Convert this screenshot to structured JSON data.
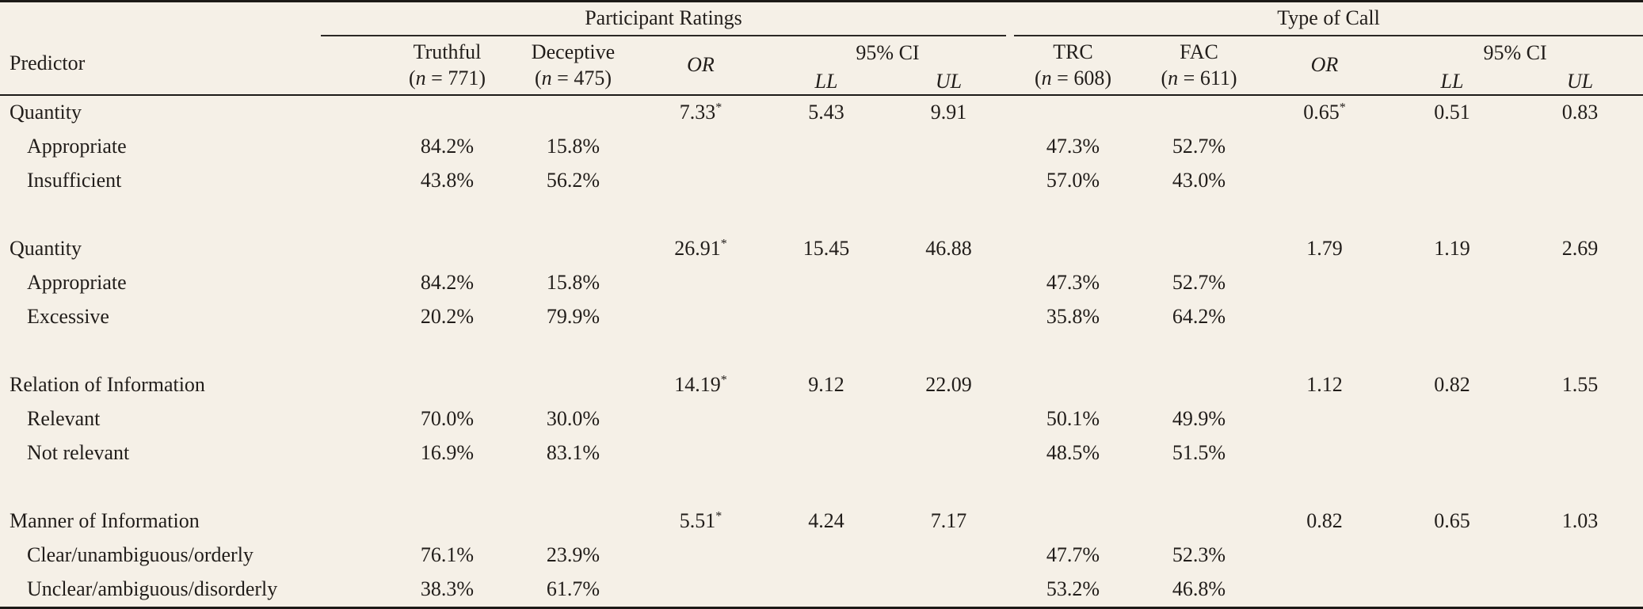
{
  "page": {
    "background_color": "#f5f0e7",
    "text_color": "#211d1a",
    "rule_color": "#1c1a17"
  },
  "table": {
    "header": {
      "predictor_label": "Predictor",
      "group1": {
        "label": "Participant Ratings",
        "col1_top": "Truthful",
        "col1_n_pre": "(",
        "col1_n_italic": "n",
        "col1_n_post": " = 771)",
        "col2_top": "Deceptive",
        "col2_n_pre": "(",
        "col2_n_italic": "n",
        "col2_n_post": " = 475)",
        "or_label": "OR",
        "ci_label": "95% CI",
        "ll_label": "LL",
        "ul_label": "UL"
      },
      "group2": {
        "label": "Type of Call",
        "col1_top": "TRC",
        "col1_n_pre": "(",
        "col1_n_italic": "n",
        "col1_n_post": " = 608)",
        "col2_top": "FAC",
        "col2_n_pre": "(",
        "col2_n_italic": "n",
        "col2_n_post": " = 611)",
        "or_label": "OR",
        "ci_label": "95% CI",
        "ll_label": "LL",
        "ul_label": "UL"
      }
    },
    "rows": [
      {
        "label": "Quantity",
        "indent": false,
        "cells": [
          "",
          "",
          "7.33*",
          "5.43",
          "9.91",
          "",
          "",
          "0.65*",
          "0.51",
          "0.83"
        ]
      },
      {
        "label": "Appropriate",
        "indent": true,
        "cells": [
          "84.2%",
          "15.8%",
          "",
          "",
          "",
          "47.3%",
          "52.7%",
          "",
          "",
          ""
        ]
      },
      {
        "label": "Insufficient",
        "indent": true,
        "cells": [
          "43.8%",
          "56.2%",
          "",
          "",
          "",
          "57.0%",
          "43.0%",
          "",
          "",
          ""
        ]
      },
      {
        "label": "",
        "spacer": true,
        "cells": [
          "",
          "",
          "",
          "",
          "",
          "",
          "",
          "",
          "",
          ""
        ]
      },
      {
        "label": "Quantity",
        "indent": false,
        "cells": [
          "",
          "",
          "26.91*",
          "15.45",
          "46.88",
          "",
          "",
          "1.79",
          "1.19",
          "2.69"
        ]
      },
      {
        "label": "Appropriate",
        "indent": true,
        "cells": [
          "84.2%",
          "15.8%",
          "",
          "",
          "",
          "47.3%",
          "52.7%",
          "",
          "",
          ""
        ]
      },
      {
        "label": "Excessive",
        "indent": true,
        "cells": [
          "20.2%",
          "79.9%",
          "",
          "",
          "",
          "35.8%",
          "64.2%",
          "",
          "",
          ""
        ]
      },
      {
        "label": "",
        "spacer": true,
        "cells": [
          "",
          "",
          "",
          "",
          "",
          "",
          "",
          "",
          "",
          ""
        ]
      },
      {
        "label": "Relation of Information",
        "indent": false,
        "cells": [
          "",
          "",
          "14.19*",
          "9.12",
          "22.09",
          "",
          "",
          "1.12",
          "0.82",
          "1.55"
        ]
      },
      {
        "label": "Relevant",
        "indent": true,
        "cells": [
          "70.0%",
          "30.0%",
          "",
          "",
          "",
          "50.1%",
          "49.9%",
          "",
          "",
          ""
        ]
      },
      {
        "label": "Not relevant",
        "indent": true,
        "cells": [
          "16.9%",
          "83.1%",
          "",
          "",
          "",
          "48.5%",
          "51.5%",
          "",
          "",
          ""
        ]
      },
      {
        "label": "",
        "spacer": true,
        "cells": [
          "",
          "",
          "",
          "",
          "",
          "",
          "",
          "",
          "",
          ""
        ]
      },
      {
        "label": "Manner of Information",
        "indent": false,
        "cells": [
          "",
          "",
          "5.51*",
          "4.24",
          "7.17",
          "",
          "",
          "0.82",
          "0.65",
          "1.03"
        ]
      },
      {
        "label": "Clear/unambiguous/orderly",
        "indent": true,
        "cells": [
          "76.1%",
          "23.9%",
          "",
          "",
          "",
          "47.7%",
          "52.3%",
          "",
          "",
          ""
        ]
      },
      {
        "label": "Unclear/ambiguous/disorderly",
        "indent": true,
        "cells": [
          "38.3%",
          "61.7%",
          "",
          "",
          "",
          "53.2%",
          "46.8%",
          "",
          "",
          ""
        ]
      }
    ]
  }
}
